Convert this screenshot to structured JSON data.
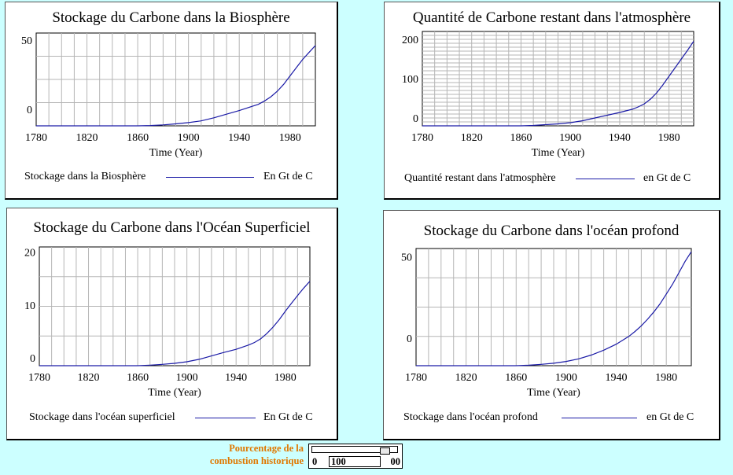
{
  "panels": [
    {
      "title": "Stockage du Carbone dans la Biosphère",
      "legend_label": "Stockage dans la Biosphère",
      "legend_unit": "En Gt de C",
      "fine_grid": false,
      "chart_data": {
        "type": "line",
        "xlabel": "Time (Year)",
        "ylabel": "",
        "xlim": [
          1780,
          2000
        ],
        "ylim": [
          -12,
          55
        ],
        "xticks": [
          1780,
          1820,
          1860,
          1900,
          1940,
          1980
        ],
        "yticks": [
          0,
          50
        ],
        "series": [
          {
            "x": [
              1780,
              1800,
              1820,
              1840,
              1860,
              1870,
              1880,
              1890,
              1900,
              1910,
              1920,
              1930,
              1940,
              1950,
              1955,
              1960,
              1965,
              1970,
              1975,
              1980,
              1985,
              1990,
              1995,
              2000
            ],
            "y": [
              -12,
              -12,
              -12,
              -12,
              -12,
              -11.8,
              -11.3,
              -10.6,
              -9.7,
              -8.4,
              -6.2,
              -3.6,
              -1,
              2,
              3.5,
              6,
              9,
              13,
              18,
              24,
              30,
              36,
              41,
              46
            ]
          }
        ]
      }
    },
    {
      "title": "Quantité de Carbone restant dans l'atmosphère",
      "legend_label": "Quantité restant dans l'atmosphère",
      "legend_unit": "en Gt  de C",
      "fine_grid": true,
      "chart_data": {
        "type": "line",
        "xlabel": "Time (Year)",
        "ylabel": "",
        "xlim": [
          1780,
          2000
        ],
        "ylim": [
          -20,
          220
        ],
        "xticks": [
          1780,
          1820,
          1860,
          1900,
          1940,
          1980
        ],
        "yticks": [
          0,
          100,
          200
        ],
        "series": [
          {
            "x": [
              1780,
              1800,
              1820,
              1840,
              1860,
              1870,
              1880,
              1890,
              1900,
              1910,
              1920,
              1930,
              1940,
              1950,
              1955,
              1960,
              1965,
              1970,
              1975,
              1980,
              1985,
              1990,
              1995,
              2000
            ],
            "y": [
              -20,
              -20,
              -20,
              -20,
              -20,
              -19,
              -17,
              -15,
              -12,
              -7,
              0,
              7,
              14,
              22,
              28,
              36,
              48,
              64,
              84,
              106,
              128,
              150,
              172,
              195
            ]
          }
        ]
      }
    },
    {
      "title": "Stockage du Carbone dans l'Océan Superficiel",
      "legend_label": "Stockage dans l'océan superficiel",
      "legend_unit": "En Gt de C",
      "fine_grid": false,
      "chart_data": {
        "type": "line",
        "xlabel": "Time (Year)",
        "ylabel": "",
        "xlim": [
          1780,
          2000
        ],
        "ylim": [
          -1.5,
          21
        ],
        "xticks": [
          1780,
          1820,
          1860,
          1900,
          1940,
          1980
        ],
        "yticks": [
          0,
          10,
          20
        ],
        "series": [
          {
            "x": [
              1780,
              1800,
              1820,
              1840,
              1860,
              1870,
              1880,
              1890,
              1900,
              1910,
              1920,
              1930,
              1940,
              1950,
              1955,
              1960,
              1965,
              1970,
              1975,
              1980,
              1985,
              1990,
              1995,
              2000
            ],
            "y": [
              -1.5,
              -1.5,
              -1.5,
              -1.5,
              -1.5,
              -1.4,
              -1.25,
              -1.05,
              -0.75,
              -0.3,
              0.35,
              1.0,
              1.6,
              2.4,
              2.9,
              3.6,
              4.6,
              5.8,
              7.2,
              8.8,
              10.3,
              11.8,
              13.2,
              14.5
            ]
          }
        ]
      }
    },
    {
      "title": "Stockage du Carbone dans l'océan profond",
      "legend_label": "Stockage dans l'océan profond",
      "legend_unit": "en Gt de C",
      "fine_grid": false,
      "chart_data": {
        "type": "line",
        "xlabel": "Time (Year)",
        "ylabel": "",
        "xlim": [
          1780,
          2000
        ],
        "ylim": [
          -17,
          55
        ],
        "xticks": [
          1780,
          1820,
          1860,
          1900,
          1940,
          1980
        ],
        "yticks": [
          0,
          50
        ],
        "series": [
          {
            "x": [
              1780,
              1800,
              1820,
              1840,
              1860,
              1870,
              1880,
              1890,
              1900,
              1910,
              1920,
              1930,
              1940,
              1950,
              1955,
              1960,
              1965,
              1970,
              1975,
              1980,
              1985,
              1990,
              1995,
              2000
            ],
            "y": [
              -17,
              -17,
              -17,
              -17,
              -17,
              -16.7,
              -16.2,
              -15.5,
              -14.4,
              -12.8,
              -10.5,
              -7.5,
              -3.8,
              1,
              4,
              7.5,
              11.5,
              16,
              21,
              27,
              33,
              40,
              47,
              53
            ]
          }
        ]
      }
    }
  ],
  "control": {
    "label_line1": "Pourcentage de la",
    "label_line2": "combustion historique",
    "min": "0",
    "max": "00",
    "value": "100",
    "slider_fraction": 0.9
  },
  "colors": {
    "background": "#ccffff",
    "series_line": "#1a1aa6",
    "grid": "#b5b5b5",
    "control_label": "#e07800"
  }
}
